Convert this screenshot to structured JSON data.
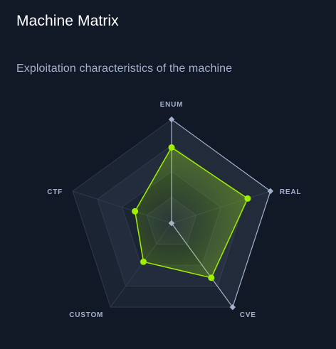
{
  "header": {
    "title": "Machine Matrix",
    "subtitle": "Exploitation characteristics of the machine"
  },
  "colors": {
    "background": "#111927",
    "grid_ring_dark": "#1b2433",
    "grid_ring_light": "#222c3c",
    "grid_line": "#2f3a4c",
    "reference_series": "#a4b1cd",
    "machine_series": "#9fef00"
  },
  "chart_data": {
    "type": "radar",
    "categories": [
      "ENUM",
      "REAL",
      "CVE",
      "CUSTOM",
      "CTF"
    ],
    "range": [
      0,
      10
    ],
    "rings": 4,
    "grid": true,
    "series": [
      {
        "role": "reference",
        "values": [
          10,
          10,
          10,
          0,
          0
        ]
      },
      {
        "role": "machine",
        "values": [
          7.3,
          7.7,
          6.5,
          4.6,
          3.7
        ]
      }
    ]
  }
}
